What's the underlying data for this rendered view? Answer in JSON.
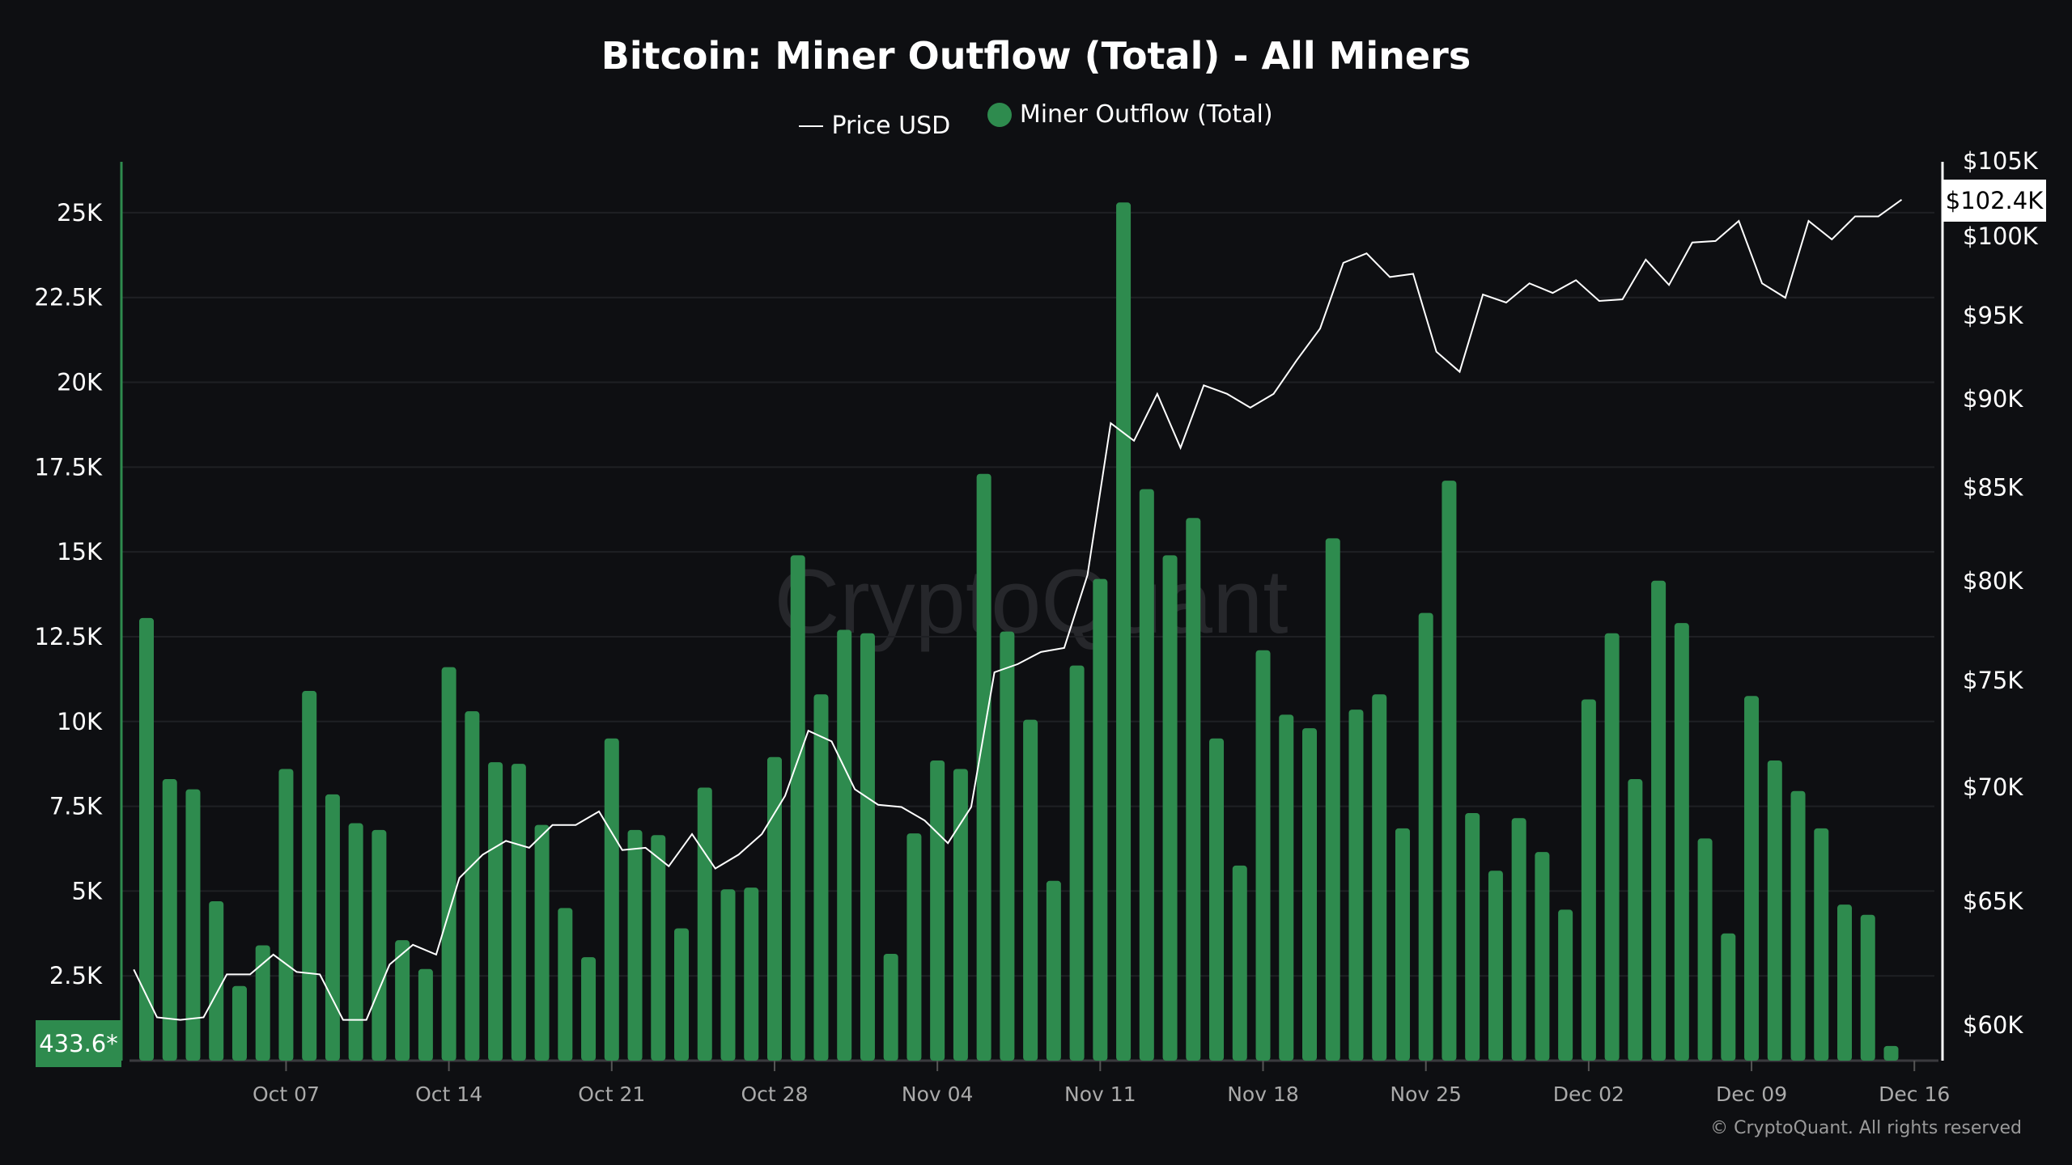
{
  "chart_data": {
    "type": "bar+line",
    "title": "Bitcoin: Miner Outflow (Total) - All Miners",
    "legend": [
      "Price USD",
      "Miner Outflow (Total)"
    ],
    "legend_placement": "top-center",
    "watermark": "CryptoQuant",
    "footer": "© CryptoQuant. All rights reserved",
    "colors": {
      "bars": "#2e8b4e",
      "line": "#ffffff",
      "background": "#0e0f12",
      "grid": "#1f2024"
    },
    "grid": true,
    "x_ticks": [
      "Oct 07",
      "Oct 14",
      "Oct 21",
      "Oct 28",
      "Nov 04",
      "Nov 11",
      "Nov 18",
      "Nov 25",
      "Dec 02",
      "Dec 09",
      "Dec 16"
    ],
    "left_axis": {
      "ylim": [
        0,
        26500
      ],
      "ticks": [
        "2.5K",
        "5K",
        "7.5K",
        "10K",
        "12.5K",
        "15K",
        "17.5K",
        "20K",
        "22.5K",
        "25K"
      ],
      "tick_values": [
        2500,
        5000,
        7500,
        10000,
        12500,
        15000,
        17500,
        20000,
        22500,
        25000
      ]
    },
    "right_axis": {
      "scale": "log",
      "ylim": [
        58500,
        106000
      ],
      "ticks": [
        "$60K",
        "$65K",
        "$70K",
        "$75K",
        "$80K",
        "$85K",
        "$90K",
        "$95K",
        "$100K",
        "$105K"
      ],
      "tick_values": [
        60000,
        65000,
        70000,
        75000,
        80000,
        85000,
        90000,
        95000,
        100000,
        105000
      ]
    },
    "last_outflow_label": "433.6*",
    "last_price_label": "$102.4K",
    "outflow_series": {
      "name": "Miner Outflow (Total)",
      "start_date": "2024-10-01",
      "values": [
        13050,
        8300,
        8000,
        4700,
        2200,
        3400,
        8600,
        10900,
        7850,
        7000,
        6800,
        3550,
        2700,
        11600,
        10300,
        8800,
        8750,
        6950,
        4500,
        3050,
        9500,
        6800,
        6650,
        3900,
        8050,
        5050,
        5100,
        8950,
        14900,
        10800,
        12700,
        12600,
        3150,
        6700,
        8850,
        8600,
        17300,
        12650,
        10050,
        5300,
        11650,
        14200,
        25300,
        16850,
        14900,
        16000,
        9500,
        5750,
        12100,
        10200,
        9800,
        15400,
        10350,
        10800,
        6850,
        13200,
        17100,
        7300,
        5600,
        7150,
        6150,
        4450,
        10650,
        12600,
        8300,
        14150,
        12900,
        6550,
        3750,
        10750,
        8850,
        7950,
        6850,
        4600,
        4300,
        433.6
      ]
    },
    "price_series": {
      "name": "Price USD",
      "start_date": "2024-09-30",
      "values": [
        62200,
        60300,
        60200,
        60300,
        62000,
        62000,
        62800,
        62100,
        62000,
        60200,
        60200,
        62400,
        63200,
        62800,
        66000,
        67000,
        67600,
        67300,
        68300,
        68300,
        68900,
        67200,
        67300,
        66500,
        67900,
        66400,
        67000,
        67900,
        69600,
        72600,
        72100,
        69900,
        69200,
        69100,
        68500,
        67500,
        69100,
        75400,
        75800,
        76400,
        76600,
        80300,
        88600,
        87600,
        90300,
        87200,
        90800,
        90300,
        89500,
        90300,
        92300,
        94200,
        98300,
        98900,
        97400,
        97600,
        92800,
        91600,
        96300,
        95800,
        97000,
        96400,
        97200,
        95900,
        96000,
        98500,
        96900,
        99600,
        99700,
        101000,
        97000,
        96100,
        101000,
        99800,
        101300,
        101300,
        102400
      ]
    }
  }
}
